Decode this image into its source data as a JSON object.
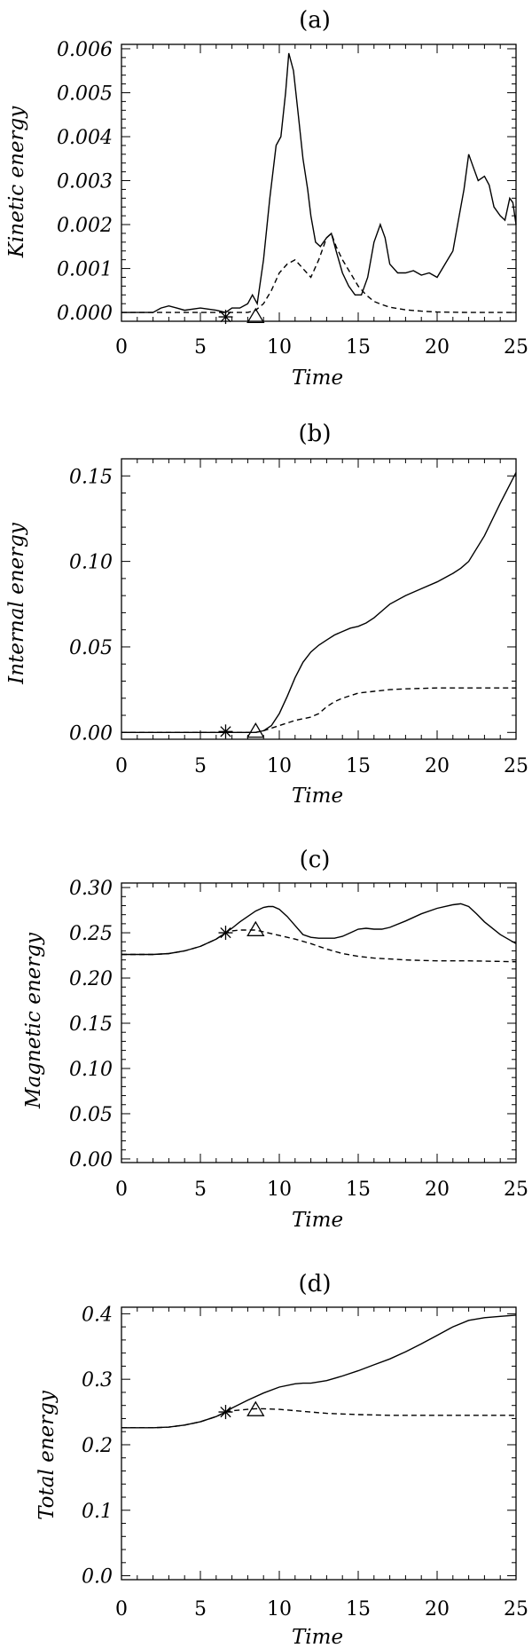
{
  "chart_data": [
    {
      "type": "line",
      "title": "(a)",
      "xlabel": "Time",
      "ylabel": "Kinetic energy",
      "xlim": [
        0,
        25
      ],
      "ylim": [
        -0.0002,
        0.0061
      ],
      "xticks": [
        "0",
        "5",
        "10",
        "15",
        "20",
        "25"
      ],
      "xtick_values": [
        0,
        5,
        10,
        15,
        20,
        25
      ],
      "yticks": [
        "0.000",
        "0.001",
        "0.002",
        "0.003",
        "0.004",
        "0.005",
        "0.006"
      ],
      "ytick_values": [
        0,
        0.001,
        0.002,
        0.003,
        0.004,
        0.005,
        0.006
      ],
      "series": [
        {
          "style": "solid",
          "x": [
            0,
            2,
            2.5,
            3,
            3.5,
            4,
            5,
            6,
            6.6,
            7,
            7.5,
            8,
            8.3,
            8.6,
            9,
            9.4,
            9.8,
            10.1,
            10.4,
            10.6,
            10.9,
            11.2,
            11.5,
            11.8,
            12,
            12.3,
            12.6,
            13,
            13.3,
            13.6,
            14,
            14.4,
            14.8,
            15.2,
            15.6,
            16,
            16.4,
            16.7,
            17,
            17.5,
            18,
            18.5,
            19,
            19.5,
            20,
            20.5,
            21,
            21.4,
            21.7,
            22,
            22.3,
            22.6,
            23,
            23.3,
            23.6,
            24,
            24.3,
            24.6,
            24.8,
            25
          ],
          "y": [
            0,
            0,
            0.0001,
            0.00015,
            0.0001,
            5e-05,
            0.0001,
            5e-05,
            0,
            0.0001,
            0.0001,
            0.0002,
            0.0004,
            0.0002,
            0.0012,
            0.0026,
            0.0038,
            0.004,
            0.005,
            0.0059,
            0.0055,
            0.0045,
            0.0035,
            0.0028,
            0.0022,
            0.0016,
            0.0015,
            0.0017,
            0.0018,
            0.0014,
            0.0009,
            0.0006,
            0.0004,
            0.0004,
            0.0008,
            0.0016,
            0.002,
            0.0017,
            0.0011,
            0.0009,
            0.0009,
            0.00095,
            0.00085,
            0.0009,
            0.0008,
            0.0011,
            0.0014,
            0.0022,
            0.0028,
            0.0036,
            0.0033,
            0.003,
            0.0031,
            0.0029,
            0.0024,
            0.0022,
            0.0021,
            0.0026,
            0.0025,
            0.002
          ]
        },
        {
          "style": "dashed",
          "x": [
            0,
            6.6,
            8,
            8.5,
            9,
            9.5,
            10,
            10.5,
            11,
            11.5,
            12,
            12.5,
            13,
            13.3,
            13.6,
            14,
            14.5,
            15,
            15.5,
            16,
            16.5,
            17,
            18,
            19,
            20,
            22,
            25
          ],
          "y": [
            0,
            0,
            0,
            5e-05,
            0.0002,
            0.0005,
            0.0009,
            0.0011,
            0.0012,
            0.001,
            0.0008,
            0.0012,
            0.0017,
            0.0018,
            0.0015,
            0.0012,
            0.0009,
            0.0006,
            0.0004,
            0.00025,
            0.00018,
            0.00012,
            6e-05,
            3e-05,
            1e-05,
            0,
            0
          ]
        }
      ],
      "markers": [
        {
          "symbol": "star",
          "x": 6.6,
          "y": -0.0001
        },
        {
          "symbol": "triangle",
          "x": 8.5,
          "y": -0.0001
        }
      ]
    },
    {
      "type": "line",
      "title": "(b)",
      "xlabel": "Time",
      "ylabel": "Internal energy",
      "xlim": [
        0,
        25
      ],
      "ylim": [
        -0.004,
        0.16
      ],
      "xticks": [
        "0",
        "5",
        "10",
        "15",
        "20",
        "25"
      ],
      "xtick_values": [
        0,
        5,
        10,
        15,
        20,
        25
      ],
      "yticks": [
        "0.00",
        "0.05",
        "0.10",
        "0.15"
      ],
      "ytick_values": [
        0,
        0.05,
        0.1,
        0.15
      ],
      "series": [
        {
          "style": "solid",
          "x": [
            0,
            6.6,
            8.5,
            9,
            9.5,
            10,
            10.5,
            11,
            11.5,
            12,
            12.5,
            13,
            13.5,
            14,
            14.5,
            15,
            15.5,
            16,
            16.5,
            17,
            18,
            19,
            20,
            21,
            21.5,
            22,
            23,
            24,
            25
          ],
          "y": [
            0,
            0,
            0,
            0.001,
            0.004,
            0.011,
            0.021,
            0.032,
            0.041,
            0.047,
            0.051,
            0.054,
            0.057,
            0.059,
            0.061,
            0.062,
            0.064,
            0.067,
            0.071,
            0.075,
            0.08,
            0.084,
            0.088,
            0.093,
            0.096,
            0.1,
            0.115,
            0.134,
            0.152
          ]
        },
        {
          "style": "dashed",
          "x": [
            0,
            6.6,
            8.5,
            9,
            10,
            11,
            12,
            12.5,
            13,
            13.5,
            14,
            15,
            16,
            17,
            18,
            20,
            22,
            25
          ],
          "y": [
            0,
            0,
            0,
            0.001,
            0.004,
            0.007,
            0.009,
            0.011,
            0.015,
            0.018,
            0.02,
            0.023,
            0.024,
            0.025,
            0.0255,
            0.026,
            0.026,
            0.026
          ]
        }
      ],
      "markers": [
        {
          "symbol": "star",
          "x": 6.6,
          "y": 0.0005
        },
        {
          "symbol": "triangle",
          "x": 8.5,
          "y": 0.0005
        }
      ]
    },
    {
      "type": "line",
      "title": "(c)",
      "xlabel": "Time",
      "ylabel": "Magnetic energy",
      "xlim": [
        0,
        25
      ],
      "ylim": [
        -0.004,
        0.305
      ],
      "xticks": [
        "0",
        "5",
        "10",
        "15",
        "20",
        "25"
      ],
      "xtick_values": [
        0,
        5,
        10,
        15,
        20,
        25
      ],
      "yticks": [
        "0.00",
        "0.05",
        "0.10",
        "0.15",
        "0.20",
        "0.25",
        "0.30"
      ],
      "ytick_values": [
        0,
        0.05,
        0.1,
        0.15,
        0.2,
        0.25,
        0.3
      ],
      "series": [
        {
          "style": "solid",
          "x": [
            0,
            2,
            3,
            4,
            5,
            6,
            6.6,
            7,
            7.5,
            8,
            8.5,
            9,
            9.3,
            9.6,
            10,
            10.5,
            11,
            11.5,
            12,
            12.5,
            13,
            13.5,
            14,
            14.5,
            15,
            15.5,
            16,
            16.5,
            17,
            18,
            19,
            20,
            21,
            21.5,
            22,
            22.5,
            23,
            24,
            25
          ],
          "y": [
            0.226,
            0.226,
            0.227,
            0.23,
            0.235,
            0.243,
            0.25,
            0.255,
            0.262,
            0.268,
            0.274,
            0.278,
            0.279,
            0.279,
            0.276,
            0.268,
            0.258,
            0.248,
            0.245,
            0.244,
            0.244,
            0.244,
            0.246,
            0.25,
            0.254,
            0.255,
            0.254,
            0.254,
            0.256,
            0.263,
            0.271,
            0.277,
            0.281,
            0.282,
            0.279,
            0.271,
            0.262,
            0.248,
            0.238
          ]
        },
        {
          "style": "dashed",
          "x": [
            0,
            2,
            3,
            4,
            5,
            6,
            6.6,
            7,
            7.5,
            8,
            8.5,
            9,
            9.5,
            10,
            11,
            12,
            13,
            14,
            15,
            16,
            17,
            18,
            20,
            22,
            25
          ],
          "y": [
            0.226,
            0.226,
            0.227,
            0.23,
            0.235,
            0.243,
            0.25,
            0.252,
            0.253,
            0.253,
            0.253,
            0.251,
            0.249,
            0.247,
            0.243,
            0.238,
            0.232,
            0.227,
            0.224,
            0.222,
            0.221,
            0.22,
            0.219,
            0.219,
            0.218
          ]
        }
      ],
      "markers": [
        {
          "symbol": "star",
          "x": 6.6,
          "y": 0.25
        },
        {
          "symbol": "triangle",
          "x": 8.5,
          "y": 0.253
        }
      ]
    },
    {
      "type": "line",
      "title": "(d)",
      "xlabel": "Time",
      "ylabel": "Total energy",
      "xlim": [
        0,
        25
      ],
      "ylim": [
        -0.006,
        0.41
      ],
      "xticks": [
        "0",
        "5",
        "10",
        "15",
        "20",
        "25"
      ],
      "xtick_values": [
        0,
        5,
        10,
        15,
        20,
        25
      ],
      "yticks": [
        "0.0",
        "0.1",
        "0.2",
        "0.3",
        "0.4"
      ],
      "ytick_values": [
        0,
        0.1,
        0.2,
        0.3,
        0.4
      ],
      "series": [
        {
          "style": "solid",
          "x": [
            0,
            2,
            3,
            4,
            5,
            6,
            6.6,
            7,
            8,
            9,
            10,
            11,
            11.5,
            12,
            13,
            14,
            15,
            16,
            17,
            18,
            19,
            20,
            21,
            22,
            23,
            24,
            25
          ],
          "y": [
            0.226,
            0.226,
            0.227,
            0.23,
            0.235,
            0.243,
            0.25,
            0.256,
            0.268,
            0.279,
            0.288,
            0.293,
            0.294,
            0.294,
            0.298,
            0.305,
            0.313,
            0.322,
            0.331,
            0.342,
            0.354,
            0.367,
            0.38,
            0.39,
            0.394,
            0.396,
            0.398
          ]
        },
        {
          "style": "dashed",
          "x": [
            0,
            2,
            3,
            4,
            5,
            6,
            6.6,
            7,
            7.5,
            8,
            8.5,
            9,
            10,
            11,
            12,
            13,
            14,
            15,
            17,
            20,
            25
          ],
          "y": [
            0.226,
            0.226,
            0.227,
            0.23,
            0.235,
            0.243,
            0.25,
            0.252,
            0.253,
            0.254,
            0.255,
            0.255,
            0.254,
            0.252,
            0.25,
            0.248,
            0.247,
            0.246,
            0.245,
            0.245,
            0.245
          ]
        }
      ],
      "markers": [
        {
          "symbol": "star",
          "x": 6.6,
          "y": 0.25
        },
        {
          "symbol": "triangle",
          "x": 8.5,
          "y": 0.253
        }
      ]
    }
  ]
}
